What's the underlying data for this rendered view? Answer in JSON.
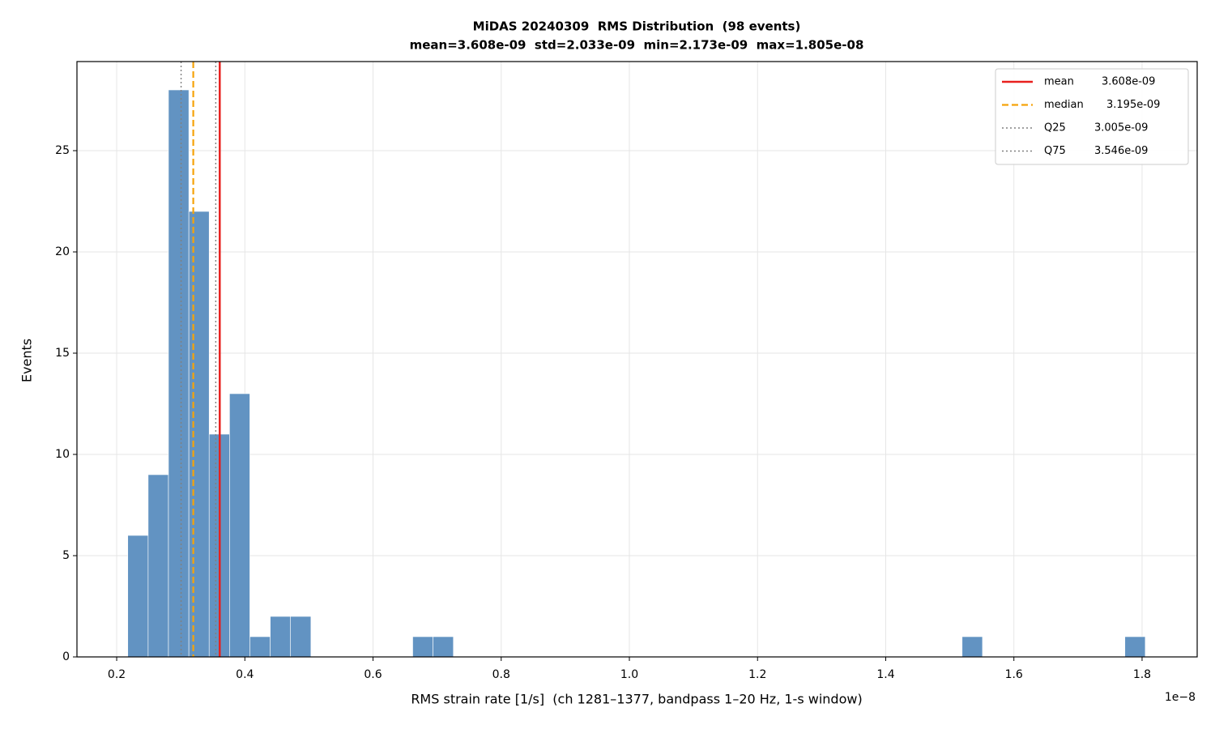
{
  "chart_data": {
    "type": "histogram",
    "title": "MiDAS 20240309  RMS Distribution  (98 events)",
    "subtitle": "mean=3.608e-09  std=2.033e-09  min=2.173e-09  max=1.805e-08",
    "x_label": "RMS strain rate [1/s]  (ch 1281–1377, bandpass 1–20 Hz, 1-s window)",
    "x_offset_label": "1e−8",
    "y_label": "Events",
    "color": "#6293c2",
    "bins": [
      0.2173,
      0.2491,
      0.2808,
      0.3126,
      0.3443,
      0.3761,
      0.4078,
      0.4396,
      0.4713,
      0.5031,
      0.5348,
      0.5666,
      0.5983,
      0.6301,
      0.6619,
      0.6936,
      0.7254,
      0.7571,
      0.7889,
      0.8206,
      0.8524,
      0.8841,
      0.9159,
      0.9476,
      0.9794,
      1.0112,
      1.0429,
      1.0747,
      1.1064,
      1.1382,
      1.1699,
      1.2017,
      1.2334,
      1.2652,
      1.2969,
      1.3287,
      1.3604,
      1.3922,
      1.424,
      1.4557,
      1.4875,
      1.5192,
      1.551,
      1.5827,
      1.6145,
      1.6462,
      1.678,
      1.7097,
      1.7415,
      1.7732,
      1.805
    ],
    "values": [
      6,
      9,
      28,
      22,
      11,
      13,
      1,
      2,
      2,
      0,
      0,
      0,
      0,
      0,
      1,
      1,
      0,
      0,
      0,
      0,
      0,
      0,
      0,
      0,
      0,
      0,
      0,
      0,
      0,
      0,
      0,
      0,
      0,
      0,
      0,
      0,
      0,
      0,
      0,
      0,
      0,
      1,
      0,
      0,
      0,
      0,
      0,
      0,
      0,
      1
    ],
    "reference_lines": [
      {
        "name": "mean",
        "value": 0.3608,
        "label": "3.608e-09",
        "color": "#e8201e",
        "style": "solid"
      },
      {
        "name": "median",
        "value": 0.3195,
        "label": "3.195e-09",
        "color": "#f5a30a",
        "style": "dashed"
      },
      {
        "name": "Q25",
        "value": 0.3005,
        "label": "3.005e-09",
        "color": "#808080",
        "style": "dotted"
      },
      {
        "name": "Q75",
        "value": 0.3546,
        "label": "3.546e-09",
        "color": "#808080",
        "style": "dotted"
      }
    ],
    "xlim": [
      0.138,
      1.886
    ],
    "ylim": [
      0,
      29.4
    ],
    "xticks": [
      0.2,
      0.4,
      0.6,
      0.8,
      {
        "value": 1,
        "label": "1.0"
      },
      1.2,
      1.4,
      1.6,
      1.8
    ],
    "yticks": [
      0,
      5,
      10,
      15,
      20,
      25
    ],
    "grid": true,
    "legend": "upper right"
  }
}
